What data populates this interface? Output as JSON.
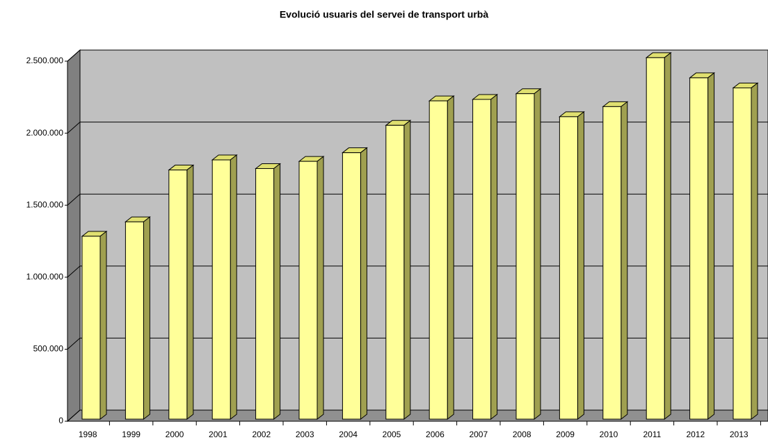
{
  "chart_data": {
    "type": "bar3d",
    "title": "Evolució usuaris del servei de transport urbà",
    "categories": [
      "1998",
      "1999",
      "2000",
      "2001",
      "2002",
      "2003",
      "2004",
      "2005",
      "2006",
      "2007",
      "2008",
      "2009",
      "2010",
      "2011",
      "2012",
      "2013"
    ],
    "values": [
      1270000,
      1370000,
      1730000,
      1800000,
      1740000,
      1790000,
      1850000,
      2040000,
      2210000,
      2220000,
      2260000,
      2100000,
      2170000,
      2510000,
      2370000,
      2300000
    ],
    "color": "#ffff99",
    "ylim": [
      0,
      2500000
    ],
    "yticks": [
      0,
      {
        "value": 500000,
        "label": "500.000"
      },
      {
        "value": 1000000,
        "label": "1.000.000"
      },
      {
        "value": 1500000,
        "label": "1.500.000"
      },
      {
        "value": 2000000,
        "label": "2.000.000"
      },
      {
        "value": 2500000,
        "label": "2.500.000"
      }
    ],
    "grid": true
  }
}
